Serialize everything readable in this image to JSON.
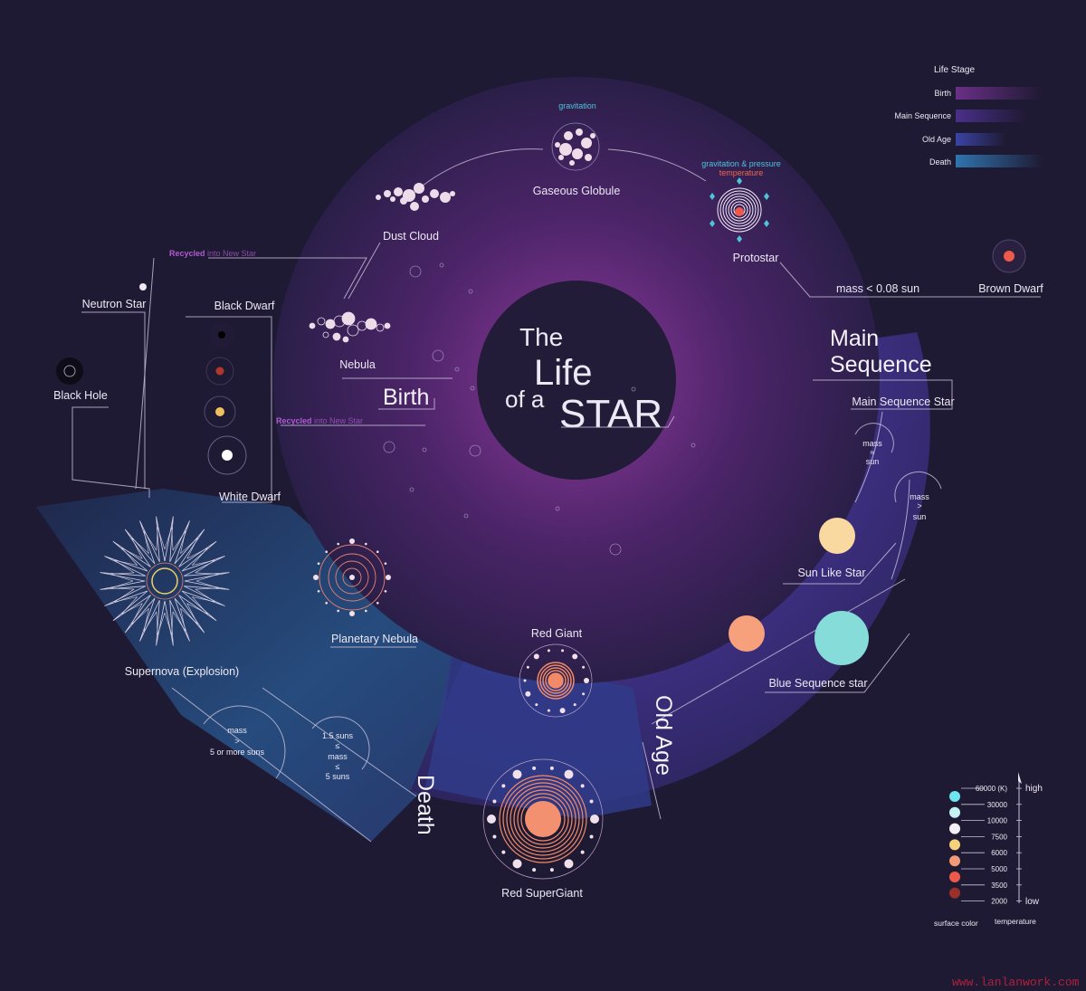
{
  "title": {
    "line1": "The",
    "line2": "Life",
    "line3": "of a",
    "line4": "STAR"
  },
  "stages": {
    "birth": "Birth",
    "main_sequence_1": "Main",
    "main_sequence_2": "Sequence",
    "old_age": "Old Age",
    "death": "Death"
  },
  "labels": {
    "gravitation": "gravitation",
    "gaseous_globule": "Gaseous Globule",
    "grav_pressure": "gravitation & pressure",
    "temperature": "temperature",
    "dust_cloud": "Dust Cloud",
    "protostar": "Protostar",
    "mass_brown": "mass < 0.08 sun",
    "brown_dwarf": "Brown Dwarf",
    "main_sequence_star": "Main Sequence Star",
    "mass_eq_sun": [
      "mass",
      "≈",
      "sun"
    ],
    "mass_gt_sun": [
      "mass",
      ">",
      "sun"
    ],
    "sun_like_star": "Sun Like Star",
    "blue_sequence_star": "Blue Sequence star",
    "red_giant": "Red Giant",
    "red_supergiant": "Red SuperGiant",
    "supernova": "Supernova (Explosion)",
    "planetary_nebula": "Planetary Nebula",
    "white_dwarf": "White Dwarf",
    "black_hole": "Black Hole",
    "neutron_star": "Neutron Star",
    "black_dwarf": "Black Dwarf",
    "nebula": "Nebula",
    "recycled_bold": "Recycled",
    "recycled_rest": " into New Star",
    "mass_gt_5": [
      "mass",
      ">",
      "5 or more suns"
    ],
    "mass_range": [
      "1.5 suns",
      "≤",
      "mass",
      "≤",
      "5 suns"
    ]
  },
  "life_stage_legend": {
    "title": "Life Stage",
    "items": [
      {
        "label": "Birth",
        "color": "#6a2f86"
      },
      {
        "label": "Main Sequence",
        "color": "#4a2f8a"
      },
      {
        "label": "Old Age",
        "color": "#3a3f9a"
      },
      {
        "label": "Death",
        "color": "#2f6aa6"
      }
    ]
  },
  "temperature_legend": {
    "unit": "(K)",
    "high": "high",
    "low": "low",
    "surface_color_label": "surface color",
    "temperature_label": "temperature",
    "ticks": [
      "60000",
      "30000",
      "10000",
      "7500",
      "6000",
      "5000",
      "3500",
      "2000"
    ],
    "colors": [
      "#6ee6ee",
      "#c6f2f4",
      "#f4f0f8",
      "#f6d07a",
      "#f29a78",
      "#ee5a4a",
      "#9a3028"
    ]
  },
  "watermark": "www.lanlanwork.com"
}
